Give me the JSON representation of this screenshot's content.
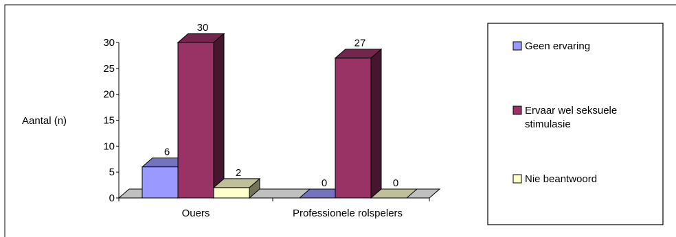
{
  "chart_data": {
    "type": "bar",
    "ylabel": "Aantal (n)",
    "ylim": [
      0,
      30
    ],
    "yticks": [
      0,
      5,
      10,
      15,
      20,
      25,
      30
    ],
    "categories": [
      "Ouers",
      "Professionele rolspelers"
    ],
    "series": [
      {
        "name": "Geen ervaring",
        "values": [
          6,
          0
        ],
        "color": "#9999ff"
      },
      {
        "name": "Ervaar wel seksuele stimulasie",
        "values": [
          30,
          27
        ],
        "color": "#993366"
      },
      {
        "name": "Nie beantwoord",
        "values": [
          2,
          0
        ],
        "color": "#ffffcc"
      }
    ],
    "legend_position": "right",
    "style": "3d-column"
  }
}
